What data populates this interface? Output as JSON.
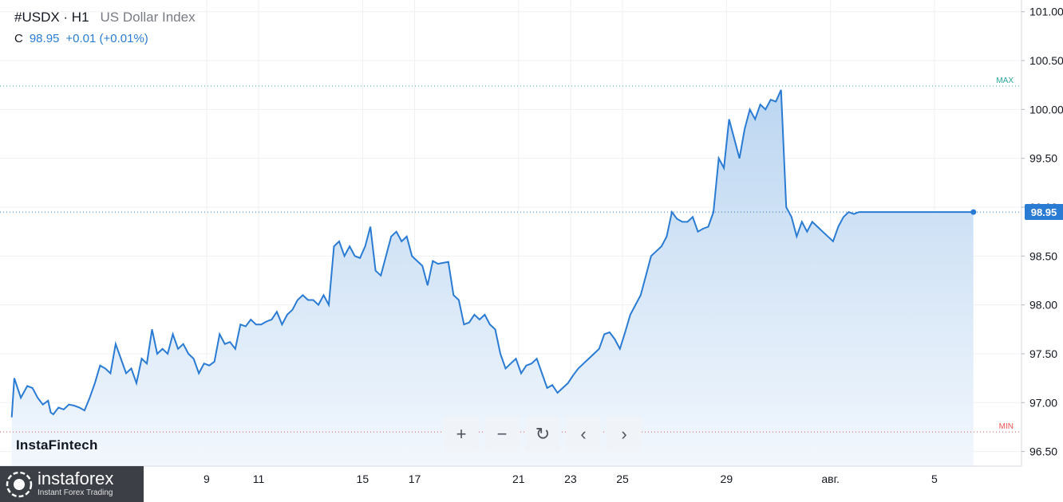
{
  "header": {
    "symbol": "#USDX · H1",
    "description": "US Dollar Index",
    "close_label": "C",
    "close_value": "98.95",
    "change": "+0.01 (+0.01%)"
  },
  "watermark": "InstaFintech",
  "brand": {
    "name": "instaforex",
    "tagline": "Instant Forex Trading"
  },
  "controls": [
    {
      "name": "zoom-in-button",
      "label": "+"
    },
    {
      "name": "zoom-out-button",
      "label": "−"
    },
    {
      "name": "reset-button",
      "label": "↻"
    },
    {
      "name": "scroll-left-button",
      "label": "‹"
    },
    {
      "name": "scroll-right-button",
      "label": "›"
    }
  ],
  "colors": {
    "line": "#2a7bd3",
    "area_top": "#bcd6f1",
    "area_bottom": "#f2f7fd",
    "grid": "#eef0f3",
    "max_line": "#26a69a",
    "min_line": "#ef5350",
    "text": "#131722"
  },
  "chart_data": {
    "type": "area",
    "ylim": [
      96.35,
      101.12
    ],
    "y_ticks": [
      96.5,
      97.0,
      97.5,
      98.0,
      98.5,
      99.0,
      99.5,
      100.0,
      100.5,
      101.0
    ],
    "y_tick_labels": [
      "96.50",
      "97.00",
      "97.50",
      "98.00",
      "98.50",
      "99.00",
      "99.50",
      "100.00",
      "100.50",
      "101.00"
    ],
    "x_ticks": [
      {
        "label": "9",
        "x": 7.5
      },
      {
        "label": "11",
        "x": 9.5
      },
      {
        "label": "15",
        "x": 13.5
      },
      {
        "label": "17",
        "x": 15.5
      },
      {
        "label": "21",
        "x": 19.5
      },
      {
        "label": "23",
        "x": 21.5
      },
      {
        "label": "25",
        "x": 23.5
      },
      {
        "label": "29",
        "x": 27.5
      },
      {
        "label": "авг.",
        "x": 31.5
      },
      {
        "label": "5",
        "x": 35.5
      }
    ],
    "last_price": 98.95,
    "last_price_label": "98.95",
    "max_value": 100.24,
    "max_label": "MAX",
    "min_value": 96.7,
    "min_label": "MIN",
    "series": [
      {
        "x": [
          0.0,
          0.1,
          0.35,
          0.6,
          0.8,
          1.0,
          1.2,
          1.4,
          1.5,
          1.6,
          1.8,
          2.0,
          2.2,
          2.4,
          2.6,
          2.8,
          3.0,
          3.2,
          3.4,
          3.6,
          3.8,
          4.0,
          4.2,
          4.4,
          4.6,
          4.8,
          5.0,
          5.2,
          5.4,
          5.6,
          5.8,
          6.0,
          6.2,
          6.4,
          6.6,
          6.8,
          7.0,
          7.2,
          7.4,
          7.6,
          7.8,
          8.0,
          8.2,
          8.4,
          8.6,
          8.8,
          9.0,
          9.2,
          9.4,
          9.6,
          9.8,
          10.0,
          10.2,
          10.4,
          10.6,
          10.8,
          11.0,
          11.2,
          11.4,
          11.6,
          11.8,
          12.0,
          12.2,
          12.4,
          12.6,
          12.8,
          13.0,
          13.2,
          13.4,
          13.6,
          13.8,
          14.0,
          14.2,
          14.4,
          14.6,
          14.8,
          15.0,
          15.2,
          15.4,
          15.6,
          15.8,
          16.0,
          16.2,
          16.4,
          16.6,
          16.8,
          17.0,
          17.2,
          17.4,
          17.6,
          17.8,
          18.0,
          18.2,
          18.4,
          18.6,
          18.8,
          19.0,
          19.2,
          19.4,
          19.6,
          19.8,
          20.0,
          20.2,
          20.4,
          20.6,
          20.8,
          21.0,
          21.2,
          21.4,
          21.6,
          21.8,
          22.0,
          22.2,
          22.4,
          22.6,
          22.8,
          23.0,
          23.2,
          23.4,
          23.6,
          23.8,
          24.0,
          24.2,
          24.4,
          24.6,
          24.8,
          25.0,
          25.2,
          25.4,
          25.6,
          25.8,
          26.0,
          26.2,
          26.4,
          26.6,
          26.8,
          27.0,
          27.2,
          27.4,
          27.6,
          27.8,
          28.0,
          28.2,
          28.4,
          28.6,
          28.8,
          29.0,
          29.2,
          29.4,
          29.6,
          29.8,
          30.0,
          30.2,
          30.4,
          30.6,
          30.8,
          31.0,
          31.2,
          31.4,
          31.6,
          31.8,
          32.0,
          32.2,
          32.4,
          32.6,
          32.8,
          33.0,
          33.2,
          33.4,
          33.6,
          33.8,
          34.0,
          34.2,
          34.4,
          34.6,
          34.8,
          35.0,
          35.2,
          35.4,
          35.6,
          35.8,
          36.0,
          36.2,
          36.4,
          36.6,
          36.8,
          37.0
        ],
        "values": [
          96.85,
          97.25,
          97.05,
          97.17,
          97.15,
          97.05,
          96.98,
          97.02,
          96.9,
          96.88,
          96.95,
          96.93,
          96.98,
          96.97,
          96.95,
          96.92,
          97.05,
          97.2,
          97.38,
          97.35,
          97.3,
          97.6,
          97.45,
          97.3,
          97.35,
          97.2,
          97.45,
          97.4,
          97.75,
          97.5,
          97.55,
          97.5,
          97.7,
          97.55,
          97.6,
          97.5,
          97.45,
          97.3,
          97.4,
          97.38,
          97.42,
          97.7,
          97.6,
          97.62,
          97.55,
          97.8,
          97.78,
          97.85,
          97.8,
          97.8,
          97.83,
          97.85,
          97.93,
          97.8,
          97.9,
          97.95,
          98.05,
          98.1,
          98.05,
          98.05,
          98.0,
          98.1,
          98.0,
          98.6,
          98.65,
          98.5,
          98.6,
          98.5,
          98.48,
          98.6,
          98.8,
          98.35,
          98.3,
          98.5,
          98.7,
          98.75,
          98.65,
          98.7,
          98.5,
          98.45,
          98.4,
          98.2,
          98.45,
          98.42,
          98.43,
          98.44,
          98.1,
          98.05,
          97.8,
          97.82,
          97.9,
          97.85,
          97.9,
          97.8,
          97.75,
          97.5,
          97.35,
          97.4,
          97.45,
          97.3,
          97.38,
          97.4,
          97.45,
          97.3,
          97.15,
          97.18,
          97.1,
          97.15,
          97.2,
          97.28,
          97.35,
          97.4,
          97.45,
          97.5,
          97.55,
          97.7,
          97.72,
          97.65,
          97.55,
          97.72,
          97.9,
          98.0,
          98.1,
          98.3,
          98.5,
          98.55,
          98.6,
          98.7,
          98.95,
          98.88,
          98.85,
          98.85,
          98.9,
          98.75,
          98.78,
          98.8,
          98.95,
          99.5,
          99.4,
          99.9,
          99.7,
          99.5,
          99.8,
          100.0,
          99.9,
          100.05,
          100.0,
          100.1,
          100.08,
          100.2,
          99.0,
          98.9,
          98.7,
          98.85,
          98.75,
          98.85,
          98.8,
          98.75,
          98.7,
          98.65,
          98.8,
          98.9,
          98.95,
          98.93,
          98.95,
          98.95,
          98.95,
          98.95,
          98.95,
          98.95,
          98.95,
          98.95,
          98.95,
          98.95,
          98.95,
          98.95,
          98.95,
          98.95,
          98.95,
          98.95,
          98.95,
          98.95,
          98.95,
          98.95,
          98.95,
          98.95,
          98.95
        ]
      }
    ]
  }
}
